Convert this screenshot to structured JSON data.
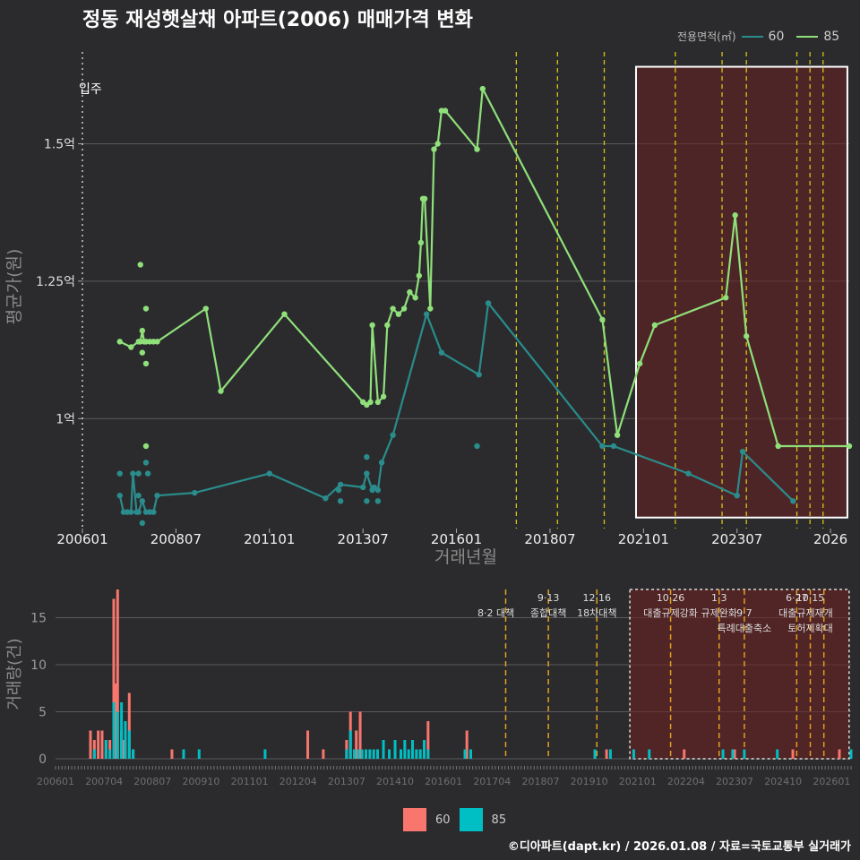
{
  "title": "정동 재성햇살채 아파트(2006) 매매가격 변화",
  "legend": {
    "title": "전용면적(㎡)",
    "items": [
      {
        "label": "60",
        "color": "#2a8c8c"
      },
      {
        "label": "85",
        "color": "#8fe07a"
      }
    ]
  },
  "bar_legend": [
    {
      "label": "60",
      "color": "#f8766d"
    },
    {
      "label": "85",
      "color": "#00bfc4"
    }
  ],
  "footer": "©디아파트(dapt.kr) / 2026.01.08 / 자료=국토교통부 실거래가",
  "chart_data": [
    {
      "type": "line",
      "title": "정동 재성햇살채 아파트(2006) 매매가격 변화",
      "xlabel": "거래년월",
      "ylabel": "평균가(원)",
      "ylim": [
        0.8,
        1.68
      ],
      "xlim": [
        2006.0,
        2026.5
      ],
      "yticks": [
        {
          "v": 1.0,
          "label": "1억"
        },
        {
          "v": 1.25,
          "label": "1.25억"
        },
        {
          "v": 1.5,
          "label": "1.5억"
        }
      ],
      "xticks": [
        {
          "v": 2006.0,
          "label": "200601"
        },
        {
          "v": 2008.5,
          "label": "200807"
        },
        {
          "v": 2011.0,
          "label": "201101"
        },
        {
          "v": 2013.5,
          "label": "201307"
        },
        {
          "v": 2016.0,
          "label": "201601"
        },
        {
          "v": 2018.5,
          "label": "201807"
        },
        {
          "v": 2021.0,
          "label": "202101"
        },
        {
          "v": 2023.5,
          "label": "202307"
        },
        {
          "v": 2026.0,
          "label": "2026"
        }
      ],
      "start_marker": {
        "x": 2006.0,
        "label": "입주"
      },
      "policy_lines": [
        2017.6,
        2018.7,
        2019.95,
        2021.85,
        2023.1,
        2023.75,
        2025.1,
        2025.45,
        2025.8
      ],
      "highlight": {
        "x0": 2020.8,
        "x1": 2026.45,
        "y0": 0.82,
        "y1": 1.64
      },
      "series": [
        {
          "name": "60",
          "color": "#2a8c8c",
          "x": [
            2007.0,
            2007.1,
            2007.2,
            2007.3,
            2007.35,
            2007.45,
            2007.5,
            2007.6,
            2007.7,
            2007.8,
            2007.9,
            2008.0,
            2009.0,
            2011.0,
            2012.5,
            2012.9,
            2013.5,
            2013.6,
            2013.75,
            2013.8,
            2013.9,
            2014.0,
            2014.3,
            2015.2,
            2015.6,
            2016.6,
            2016.85,
            2019.9,
            2020.2,
            2022.2,
            2023.5,
            2023.65,
            2025.0
          ],
          "y": [
            0.86,
            0.83,
            0.83,
            0.83,
            0.9,
            0.83,
            0.83,
            0.85,
            0.83,
            0.83,
            0.83,
            0.86,
            0.865,
            0.9,
            0.855,
            0.88,
            0.875,
            0.9,
            0.87,
            0.875,
            0.87,
            0.92,
            0.97,
            1.19,
            1.12,
            1.08,
            1.21,
            0.95,
            0.95,
            0.9,
            0.86,
            0.94,
            0.85
          ]
        },
        {
          "name": "85",
          "color": "#8fe07a",
          "x": [
            2007.0,
            2007.3,
            2007.5,
            2007.55,
            2007.6,
            2007.65,
            2007.7,
            2007.8,
            2007.9,
            2008.0,
            2009.3,
            2009.7,
            2011.4,
            2013.5,
            2013.6,
            2013.7,
            2013.75,
            2013.9,
            2014.05,
            2014.15,
            2014.3,
            2014.45,
            2014.6,
            2014.75,
            2014.9,
            2015.0,
            2015.05,
            2015.1,
            2015.15,
            2015.3,
            2015.4,
            2015.5,
            2015.6,
            2015.7,
            2016.55,
            2016.7,
            2019.9,
            2020.3,
            2020.9,
            2021.3,
            2023.2,
            2023.45,
            2023.75,
            2024.6,
            2026.5
          ],
          "y": [
            1.14,
            1.13,
            1.14,
            1.14,
            1.16,
            1.14,
            1.14,
            1.14,
            1.14,
            1.14,
            1.2,
            1.05,
            1.19,
            1.03,
            1.025,
            1.03,
            1.17,
            1.03,
            1.04,
            1.17,
            1.2,
            1.19,
            1.2,
            1.23,
            1.22,
            1.26,
            1.32,
            1.4,
            1.4,
            1.2,
            1.49,
            1.5,
            1.56,
            1.56,
            1.49,
            1.6,
            1.18,
            0.97,
            1.1,
            1.17,
            1.22,
            1.37,
            1.15,
            0.95,
            0.95
          ]
        }
      ],
      "scatter_extra": [
        {
          "series": "85",
          "x": 2007.55,
          "y": 1.28
        },
        {
          "series": "85",
          "x": 2007.7,
          "y": 1.2
        },
        {
          "series": "85",
          "x": 2007.7,
          "y": 1.1
        },
        {
          "series": "85",
          "x": 2007.6,
          "y": 1.12
        },
        {
          "series": "85",
          "x": 2007.7,
          "y": 0.95
        },
        {
          "series": "60",
          "x": 2007.0,
          "y": 0.9
        },
        {
          "series": "60",
          "x": 2007.5,
          "y": 0.9
        },
        {
          "series": "60",
          "x": 2007.7,
          "y": 0.92
        },
        {
          "series": "60",
          "x": 2007.75,
          "y": 0.9
        },
        {
          "series": "60",
          "x": 2007.6,
          "y": 0.81
        },
        {
          "series": "60",
          "x": 2007.5,
          "y": 0.86
        },
        {
          "series": "60",
          "x": 2012.9,
          "y": 0.85
        },
        {
          "series": "60",
          "x": 2013.6,
          "y": 0.93
        },
        {
          "series": "60",
          "x": 2013.9,
          "y": 0.85
        },
        {
          "series": "60",
          "x": 2013.6,
          "y": 0.85
        },
        {
          "series": "60",
          "x": 2016.55,
          "y": 0.95
        },
        {
          "series": "60",
          "x": 2012.85,
          "y": 0.87
        }
      ]
    },
    {
      "type": "bar",
      "xlabel": "",
      "ylabel": "거래량(건)",
      "ylim": [
        0,
        18
      ],
      "xlim": [
        2006.0,
        2026.5
      ],
      "yticks": [
        0,
        5,
        10,
        15
      ],
      "xticks": [
        {
          "v": 2006.0,
          "label": "200601"
        },
        {
          "v": 2007.25,
          "label": "200704"
        },
        {
          "v": 2008.5,
          "label": "200807"
        },
        {
          "v": 2009.75,
          "label": "200910"
        },
        {
          "v": 2011.0,
          "label": "201101"
        },
        {
          "v": 2012.25,
          "label": "201204"
        },
        {
          "v": 2013.5,
          "label": "201307"
        },
        {
          "v": 2014.75,
          "label": "201410"
        },
        {
          "v": 2016.0,
          "label": "201601"
        },
        {
          "v": 2017.25,
          "label": "201704"
        },
        {
          "v": 2018.5,
          "label": "201807"
        },
        {
          "v": 2019.75,
          "label": "201910"
        },
        {
          "v": 2021.0,
          "label": "202101"
        },
        {
          "v": 2022.25,
          "label": "202204"
        },
        {
          "v": 2023.5,
          "label": "202307"
        },
        {
          "v": 2024.75,
          "label": "202410"
        },
        {
          "v": 2026.0,
          "label": "202601"
        }
      ],
      "policy_lines": [
        2017.6,
        2018.7,
        2019.95,
        2021.85,
        2023.1,
        2023.75,
        2025.1,
        2025.45,
        2025.8
      ],
      "policy_labels": [
        {
          "x": 2017.35,
          "row": 1,
          "text": "8·2 대책"
        },
        {
          "x": 2018.7,
          "row": 0,
          "text": "9·13"
        },
        {
          "x": 2018.7,
          "row": 1,
          "text": "종합대책"
        },
        {
          "x": 2019.95,
          "row": 0,
          "text": "12·16"
        },
        {
          "x": 2019.95,
          "row": 1,
          "text": "18차대책"
        },
        {
          "x": 2021.85,
          "row": 0,
          "text": "10·26"
        },
        {
          "x": 2021.85,
          "row": 1,
          "text": "대출규제강화"
        },
        {
          "x": 2023.1,
          "row": 0,
          "text": "1·3"
        },
        {
          "x": 2023.1,
          "row": 1,
          "text": "규제완화"
        },
        {
          "x": 2023.75,
          "row": 1,
          "text": "9·7"
        },
        {
          "x": 2023.75,
          "row": 2,
          "text": "특례대출축소"
        },
        {
          "x": 2025.1,
          "row": 0,
          "text": "6·27"
        },
        {
          "x": 2025.1,
          "row": 1,
          "text": "대출규제"
        },
        {
          "x": 2025.45,
          "row": 0,
          "text": "10·15"
        },
        {
          "x": 2025.45,
          "row": 2,
          "text": "토허제확대"
        },
        {
          "x": 2025.8,
          "row": 1,
          "text": "재개"
        }
      ],
      "highlight": {
        "x0": 2020.8,
        "x1": 2026.45,
        "y0": 0,
        "y1": 18
      },
      "series": [
        {
          "name": "60",
          "color": "#f8766d",
          "x": [
            2006.9,
            2007.0,
            2007.1,
            2007.2,
            2007.3,
            2007.4,
            2007.5,
            2007.55,
            2007.6,
            2007.7,
            2007.75,
            2007.9,
            2008.0,
            2009.0,
            2012.5,
            2012.9,
            2013.5,
            2013.6,
            2013.75,
            2013.85,
            2014.3,
            2015.2,
            2015.6,
            2016.6,
            2019.9,
            2020.2,
            2022.2,
            2023.5,
            2025.0,
            2026.2
          ],
          "y": [
            3,
            2,
            3,
            3,
            2,
            2,
            17,
            8,
            18,
            3,
            2,
            7,
            1,
            1,
            3,
            1,
            2,
            5,
            3,
            5,
            1,
            2,
            4,
            3,
            1,
            1,
            1,
            1,
            1,
            1
          ]
        },
        {
          "name": "85",
          "color": "#00bfc4",
          "x": [
            2007.0,
            2007.3,
            2007.4,
            2007.5,
            2007.6,
            2007.7,
            2007.8,
            2007.9,
            2008.0,
            2009.3,
            2009.7,
            2011.4,
            2013.5,
            2013.6,
            2013.7,
            2013.8,
            2013.9,
            2014.0,
            2014.1,
            2014.2,
            2014.3,
            2014.45,
            2014.6,
            2014.75,
            2014.9,
            2015.0,
            2015.1,
            2015.2,
            2015.3,
            2015.4,
            2015.5,
            2015.6,
            2016.55,
            2016.7,
            2019.9,
            2020.3,
            2020.9,
            2021.3,
            2023.2,
            2023.45,
            2023.75,
            2024.6,
            2026.5
          ],
          "y": [
            1,
            2,
            1,
            6,
            5,
            6,
            4,
            3,
            1,
            1,
            1,
            1,
            1,
            3,
            1,
            1,
            1,
            1,
            1,
            1,
            1,
            2,
            1,
            2,
            1,
            2,
            1,
            2,
            1,
            1,
            2,
            1,
            1,
            1,
            1,
            1,
            1,
            1,
            1,
            1,
            1,
            1,
            1
          ]
        }
      ]
    }
  ]
}
